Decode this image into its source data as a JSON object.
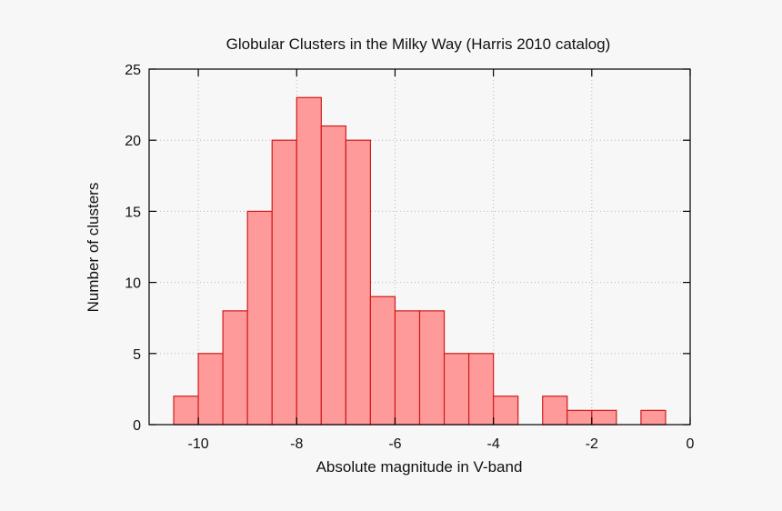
{
  "chart_data": {
    "type": "bar",
    "title": "Globular Clusters in the Milky Way (Harris 2010 catalog)",
    "xlabel": "Absolute magnitude in V-band",
    "ylabel": "Number of clusters",
    "xlim": [
      -11,
      0
    ],
    "ylim": [
      0,
      25
    ],
    "xticks": [
      -10,
      -8,
      -6,
      -4,
      -2,
      0
    ],
    "yticks": [
      0,
      5,
      10,
      15,
      20,
      25
    ],
    "bin_width": 0.5,
    "bins": [
      {
        "x": [
          -10.5,
          -10.0
        ],
        "count": 2
      },
      {
        "x": [
          -10.0,
          -9.5
        ],
        "count": 5
      },
      {
        "x": [
          -9.5,
          -9.0
        ],
        "count": 8
      },
      {
        "x": [
          -9.0,
          -8.5
        ],
        "count": 15
      },
      {
        "x": [
          -8.5,
          -8.0
        ],
        "count": 20
      },
      {
        "x": [
          -8.0,
          -7.5
        ],
        "count": 23
      },
      {
        "x": [
          -7.5,
          -7.0
        ],
        "count": 21
      },
      {
        "x": [
          -7.0,
          -6.5
        ],
        "count": 20
      },
      {
        "x": [
          -6.5,
          -6.0
        ],
        "count": 9
      },
      {
        "x": [
          -6.0,
          -5.5
        ],
        "count": 8
      },
      {
        "x": [
          -5.5,
          -5.0
        ],
        "count": 8
      },
      {
        "x": [
          -5.0,
          -4.5
        ],
        "count": 5
      },
      {
        "x": [
          -4.5,
          -4.0
        ],
        "count": 5
      },
      {
        "x": [
          -4.0,
          -3.5
        ],
        "count": 2
      },
      {
        "x": [
          -3.5,
          -3.0
        ],
        "count": 0
      },
      {
        "x": [
          -3.0,
          -2.5
        ],
        "count": 2
      },
      {
        "x": [
          -2.5,
          -2.0
        ],
        "count": 1
      },
      {
        "x": [
          -2.0,
          -1.5
        ],
        "count": 1
      },
      {
        "x": [
          -1.5,
          -1.0
        ],
        "count": 0
      },
      {
        "x": [
          -1.0,
          -0.5
        ],
        "count": 1
      }
    ],
    "grid": true,
    "colors": {
      "bar_fill": "#ff9a9a",
      "bar_edge": "#d11a1a"
    }
  }
}
